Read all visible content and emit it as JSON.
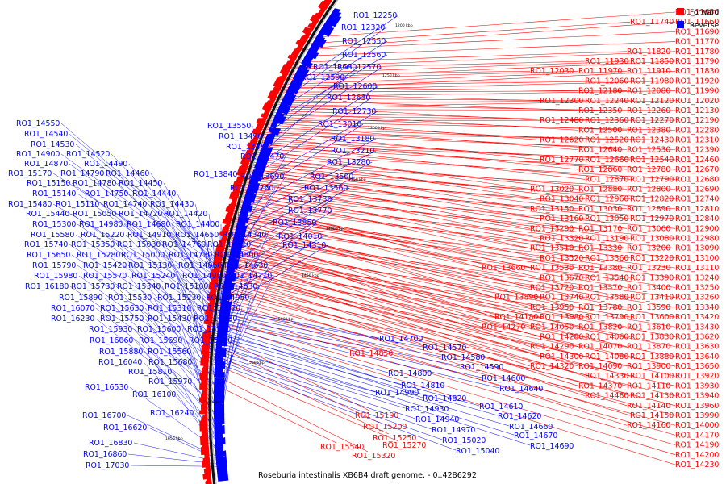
{
  "caption": "Roseburia intestinalis XB6B4 draft genome. - 0..4286292",
  "legend": [
    {
      "label": "Forward",
      "color": "#ff0000"
    },
    {
      "label": "Reverse",
      "color": "#0000ff"
    }
  ],
  "ticks": [
    "1200 kbp",
    "1250 kbp",
    "1300 kbp",
    "1350 kbp",
    "1400 kbp",
    "1450 kbp",
    "1500 kbp",
    "1550 kbp",
    "1600 kbp",
    "1650 kbp"
  ],
  "forward_labels": [
    [
      [
        "RO1_11650"
      ]
    ],
    [
      [
        "RO1_11740"
      ],
      [
        "RO1_11660"
      ]
    ],
    [
      [
        "RO1_11690"
      ]
    ],
    [
      [
        "RO1_11770"
      ]
    ],
    [
      [
        "RO1_11820"
      ],
      [
        "RO1_11780"
      ]
    ],
    [
      [
        "RO1_11930"
      ],
      [
        "RO1_11850"
      ],
      [
        "RO1_11790"
      ]
    ],
    [
      [
        "RO1_12030"
      ],
      [
        "RO1_11970"
      ],
      [
        "RO1_11910"
      ],
      [
        "RO1_11830"
      ]
    ],
    [
      [
        "RO1_12060"
      ],
      [
        "RO1_11980"
      ],
      [
        "RO1_11920"
      ]
    ],
    [
      [
        "RO1_12180"
      ],
      [
        "RO1_12080"
      ],
      [
        "RO1_11990"
      ]
    ],
    [
      [
        "RO1_12300"
      ],
      [
        "RO1_12240"
      ],
      [
        "RO1_12120"
      ],
      [
        "RO1_12020"
      ]
    ],
    [
      [
        "RO1_12350"
      ],
      [
        "RO1_12260"
      ],
      [
        "RO1_12130"
      ]
    ],
    [
      [
        "RO1_12480"
      ],
      [
        "RO1_12360"
      ],
      [
        "RO1_12270"
      ],
      [
        "RO1_12190"
      ]
    ],
    [
      [
        "RO1_12500"
      ],
      [
        "RO1_12380"
      ],
      [
        "RO1_12280"
      ]
    ],
    [
      [
        "RO1_12620"
      ],
      [
        "RO1_12520"
      ],
      [
        "RO1_12430"
      ],
      [
        "RO1_12310"
      ]
    ],
    [
      [
        "RO1_12640"
      ],
      [
        "RO1_12530"
      ],
      [
        "RO1_12390"
      ]
    ],
    [
      [
        "RO1_12770"
      ],
      [
        "RO1_12660"
      ],
      [
        "RO1_12540"
      ],
      [
        "RO1_12460"
      ]
    ],
    [
      [
        "RO1_12860"
      ],
      [
        "RO1_12780"
      ],
      [
        "RO1_12670"
      ]
    ],
    [
      [
        "RO1_12870"
      ],
      [
        "RO1_12790"
      ],
      [
        "RO1_12680"
      ]
    ],
    [
      [
        "RO1_13020"
      ],
      [
        "RO1_12880"
      ],
      [
        "RO1_12800"
      ],
      [
        "RO1_12690"
      ]
    ],
    [
      [
        "RO1_13040"
      ],
      [
        "RO1_12960"
      ],
      [
        "RO1_12820"
      ],
      [
        "RO1_12740"
      ]
    ],
    [
      [
        "RO1_13150"
      ],
      [
        "RO1_13030"
      ],
      [
        "RO1_12890"
      ],
      [
        "RO1_12810"
      ]
    ],
    [
      [
        "RO1_13160"
      ],
      [
        "RO1_13050"
      ],
      [
        "RO1_12970"
      ],
      [
        "RO1_12840"
      ]
    ],
    [
      [
        "RO1_13290"
      ],
      [
        "RO1_13170"
      ],
      [
        "RO1_13060"
      ],
      [
        "RO1_12900"
      ]
    ],
    [
      [
        "RO1_13320"
      ],
      [
        "RO1_13190"
      ],
      [
        "RO1_13080"
      ],
      [
        "RO1_12980"
      ]
    ],
    [
      [
        "RO1_13510"
      ],
      [
        "RO1_13330"
      ],
      [
        "RO1_13200"
      ],
      [
        "RO1_13090"
      ]
    ],
    [
      [
        "RO1_13520"
      ],
      [
        "RO1_13360"
      ],
      [
        "RO1_13220"
      ],
      [
        "RO1_13100"
      ]
    ],
    [
      [
        "RO1_13660"
      ],
      [
        "RO1_13530"
      ],
      [
        "RO1_13380"
      ],
      [
        "RO1_13230"
      ],
      [
        "RO1_13110"
      ]
    ],
    [
      [
        "RO1_13670"
      ],
      [
        "RO1_13540"
      ],
      [
        "RO1_13390"
      ],
      [
        "RO1_13240"
      ]
    ],
    [
      [
        "RO1_13720"
      ],
      [
        "RO1_13570"
      ],
      [
        "RO1_13400"
      ],
      [
        "RO1_13250"
      ]
    ],
    [
      [
        "RO1_13890"
      ],
      [
        "RO1_13740"
      ],
      [
        "RO1_13580"
      ],
      [
        "RO1_13410"
      ],
      [
        "RO1_13260"
      ]
    ],
    [
      [
        "RO1_13950"
      ],
      [
        "RO1_13780"
      ],
      [
        "RO1_13590"
      ],
      [
        "RO1_13340"
      ]
    ],
    [
      [
        "RO1_14180"
      ],
      [
        "RO1_13980"
      ],
      [
        "RO1_13790"
      ],
      [
        "RO1_13600"
      ],
      [
        "RO1_13420"
      ]
    ],
    [
      [
        "RO1_14270"
      ],
      [
        "RO1_14050"
      ],
      [
        "RO1_13820"
      ],
      [
        "RO1_13610"
      ],
      [
        "RO1_13430"
      ]
    ],
    [
      [
        "RO1_14280"
      ],
      [
        "RO1_14060"
      ],
      [
        "RO1_13830"
      ],
      [
        "RO1_13620"
      ]
    ],
    [
      [
        "RO1_14290"
      ],
      [
        "RO1_14070"
      ],
      [
        "RO1_13870"
      ],
      [
        "RO1_13630"
      ]
    ],
    [
      [
        "RO1_14300"
      ],
      [
        "RO1_14080"
      ],
      [
        "RO1_13880"
      ],
      [
        "RO1_13640"
      ]
    ],
    [
      [
        "RO1_14320"
      ],
      [
        "RO1_14090"
      ],
      [
        "RO1_13900"
      ],
      [
        "RO1_13650"
      ]
    ],
    [
      [
        "RO1_14330"
      ],
      [
        "RO1_14100"
      ],
      [
        "RO1_13920"
      ]
    ],
    [
      [
        "RO1_14370"
      ],
      [
        "RO1_14110"
      ],
      [
        "RO1_13930"
      ]
    ],
    [
      [
        "RO1_14480"
      ],
      [
        "RO1_14130"
      ],
      [
        "RO1_13940"
      ]
    ],
    [
      [
        "RO1_14140"
      ],
      [
        "RO1_13960"
      ]
    ],
    [
      [
        "RO1_14150"
      ],
      [
        "RO1_13990"
      ]
    ],
    [
      [
        "RO1_14160"
      ],
      [
        "RO1_14000"
      ]
    ],
    [
      [
        "RO1_14170"
      ]
    ],
    [
      [
        "RO1_14190"
      ]
    ],
    [
      [
        "RO1_14200"
      ]
    ],
    [
      [
        "RO1_14230"
      ]
    ]
  ],
  "forward_inner_labels": [
    "RO1_14850",
    "RO1_15190",
    "RO1_15200",
    "RO1_15250",
    "RO1_15270",
    "RO1_15320",
    "RO1_15540"
  ],
  "reverse_right_labels": [
    "RO1_14700",
    "RO1_14570",
    "RO1_14580",
    "RO1_14590",
    "RO1_14600",
    "RO1_14640",
    "RO1_14800",
    "RO1_14810",
    "RO1_14820",
    "RO1_14610",
    "RO1_14620",
    "RO1_14660",
    "RO1_14670",
    "RO1_14690",
    "RO1_14990",
    "RO1_14930",
    "RO1_14940",
    "RO1_14970",
    "RO1_15020",
    "RO1_15040"
  ],
  "reverse_near_labels": [
    "RO1_12250",
    "RO1_12320",
    "RO1_12550",
    "RO1_12560",
    "RO1_12580",
    "RO1_12570",
    "RO1_12590",
    "RO1_12600",
    "RO1_12630",
    "RO1_12730",
    "RO1_13010",
    "RO1_13180",
    "RO1_13210",
    "RO1_13280",
    "RO1_13500",
    "RO1_13560",
    "RO1_13730",
    "RO1_13770",
    "RO1_13850",
    "RO1_14010",
    "RO1_14310"
  ],
  "reverse_mid_labels": [
    "RO1_13550",
    "RO1_13490",
    "RO1_13480",
    "RO1_13470",
    "RO1_13840",
    "RO1_13690",
    "RO1_13760"
  ],
  "reverse_far_labels": [
    "RO1_14550",
    "RO1_14540",
    "RO1_14530",
    "RO1_14900",
    "RO1_14520",
    "RO1_14870",
    "RO1_14490",
    "RO1_15170",
    "RO1_14790",
    "RO1_14460",
    "RO1_15150",
    "RO1_14780",
    "RO1_14450",
    "RO1_15140",
    "RO1_14750",
    "RO1_14440",
    "RO1_15480",
    "RO1_15110",
    "RO1_14740",
    "RO1_14430",
    "RO1_15440",
    "RO1_15050",
    "RO1_14720",
    "RO1_14420",
    "RO1_15300",
    "RO1_14980",
    "RO1_14680",
    "RO1_14400",
    "RO1_15580",
    "RO1_15220",
    "RO1_14910",
    "RO1_14650",
    "RO1_14340",
    "RO1_15740",
    "RO1_15350",
    "RO1_15030",
    "RO1_14760",
    "RO1_14510",
    "RO1_15650",
    "RO1_15280",
    "RO1_15000",
    "RO1_14730",
    "RO1_14500",
    "RO1_15790",
    "RO1_15420",
    "RO1_15130",
    "RO1_14860",
    "RO1_14630",
    "RO1_15980",
    "RO1_15570",
    "RO1_15240",
    "RO1_14960",
    "RO1_14710",
    "RO1_16180",
    "RO1_15730",
    "RO1_15340",
    "RO1_15100",
    "RO1_14830",
    "RO1_15890",
    "RO1_15530",
    "RO1_15230",
    "RO1_14950",
    "RO1_16070",
    "RO1_15630",
    "RO1_15310",
    "RO1_15070",
    "RO1_16230",
    "RO1_15750",
    "RO1_15430",
    "RO1_15180",
    "RO1_15930",
    "RO1_15600",
    "RO1_15290",
    "RO1_16060",
    "RO1_15690",
    "RO1_15390",
    "RO1_15880",
    "RO1_15560",
    "RO1_16040",
    "RO1_15680",
    "RO1_15810",
    "RO1_15970",
    "RO1_16530",
    "RO1_16100",
    "RO1_16240",
    "RO1_16700",
    "RO1_16620",
    "RO1_16830",
    "RO1_16860",
    "RO1_17030"
  ]
}
